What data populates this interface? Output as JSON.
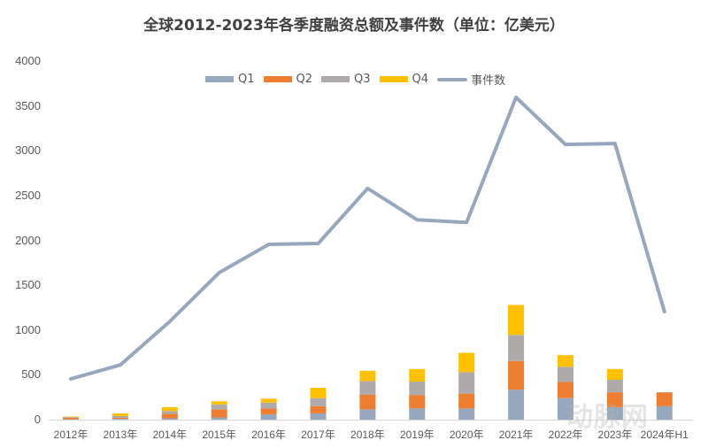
{
  "chart_data": {
    "type": "bar",
    "subtype": "stacked-bar-with-line",
    "title": "全球2012-2023年各季度融资总额及事件数（单位：亿美元）",
    "xlabel": "",
    "ylabel": "",
    "ylim": [
      0,
      4000
    ],
    "yticks": [
      0,
      500,
      1000,
      1500,
      2000,
      2500,
      3000,
      3500,
      4000
    ],
    "grid": false,
    "legend_position": "top",
    "categories": [
      "2012年",
      "2013年",
      "2014年",
      "2015年",
      "2016年",
      "2017年",
      "2018年",
      "2019年",
      "2020年",
      "2021年",
      "2022年",
      "2023年",
      "2024年H1"
    ],
    "series": [
      {
        "name": "Q1",
        "type": "bar",
        "color": "#97A8BE",
        "values": [
          5,
          8,
          15,
          25,
          60,
          70,
          115,
          125,
          125,
          335,
          240,
          140,
          150
        ]
      },
      {
        "name": "Q2",
        "type": "bar",
        "color": "#ED7D31",
        "values": [
          15,
          12,
          50,
          90,
          65,
          80,
          165,
          150,
          165,
          320,
          180,
          165,
          155
        ]
      },
      {
        "name": "Q3",
        "type": "bar",
        "color": "#AEAAAA",
        "values": [
          8,
          20,
          30,
          55,
          65,
          90,
          150,
          150,
          240,
          290,
          170,
          140,
          0
        ]
      },
      {
        "name": "Q4",
        "type": "bar",
        "color": "#FFC000",
        "values": [
          7,
          30,
          45,
          35,
          45,
          115,
          115,
          140,
          215,
          335,
          130,
          120,
          0
        ]
      },
      {
        "name": "事件数",
        "type": "line",
        "color": "#97A8BE",
        "values": [
          455,
          610,
          1095,
          1640,
          1955,
          1965,
          2580,
          2230,
          2200,
          3595,
          3070,
          3080,
          1205
        ]
      }
    ]
  },
  "legend": {
    "items": [
      {
        "label": "Q1",
        "color": "#97A8BE",
        "kind": "bar"
      },
      {
        "label": "Q2",
        "color": "#ED7D31",
        "kind": "bar"
      },
      {
        "label": "Q3",
        "color": "#AEAAAA",
        "kind": "bar"
      },
      {
        "label": "Q4",
        "color": "#FFC000",
        "kind": "bar"
      },
      {
        "label": "事件数",
        "color": "#97A8BE",
        "kind": "line"
      }
    ]
  },
  "watermark": "动脉网"
}
